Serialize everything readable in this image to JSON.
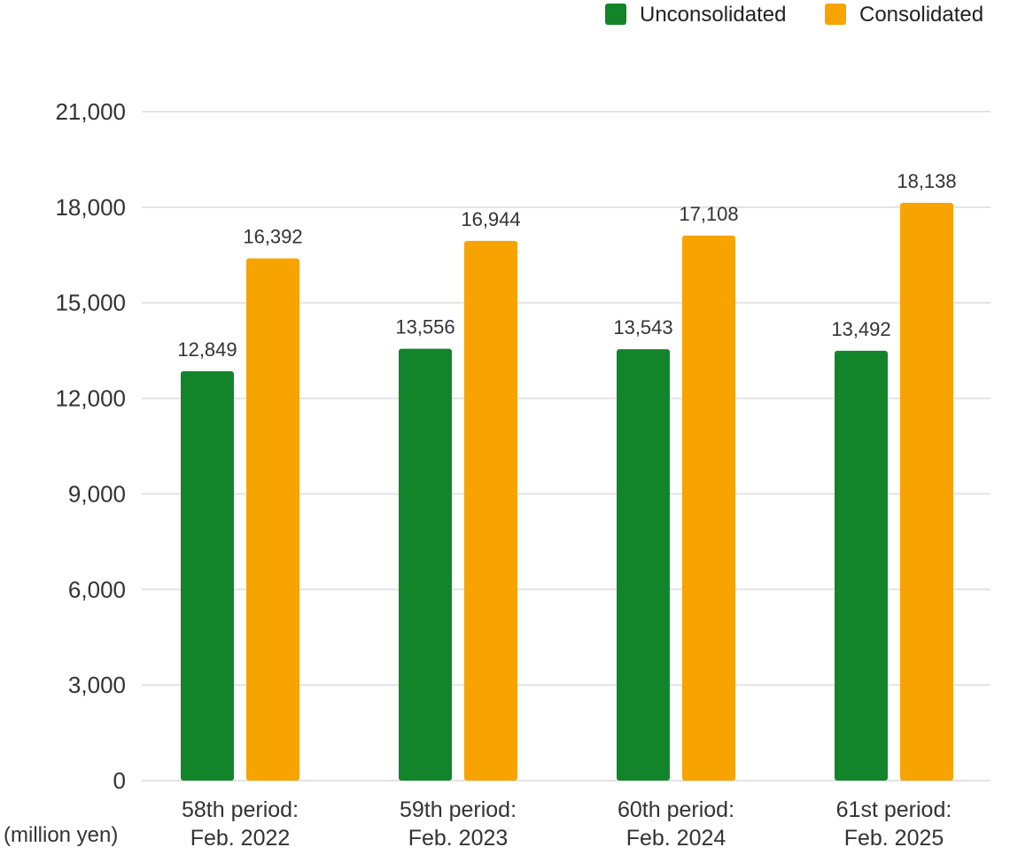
{
  "chart_data": {
    "type": "bar",
    "title": "",
    "unit_label": "(million yen)",
    "categories": [
      [
        "58th period:",
        "Feb. 2022"
      ],
      [
        "59th period:",
        "Feb. 2023"
      ],
      [
        "60th period:",
        "Feb. 2024"
      ],
      [
        "61st period:",
        "Feb. 2025"
      ]
    ],
    "series": [
      {
        "name": "Unconsolidated",
        "color": "#12852a",
        "values": [
          12849,
          13556,
          13543,
          13492
        ],
        "labels": [
          "12,849",
          "13,556",
          "13,543",
          "13,492"
        ]
      },
      {
        "name": "Consolidated",
        "color": "#f7a400",
        "values": [
          16392,
          16944,
          17108,
          18138
        ],
        "labels": [
          "16,392",
          "16,944",
          "17,108",
          "18,138"
        ]
      }
    ],
    "ylim": [
      0,
      21000
    ],
    "yticks": [
      0,
      3000,
      6000,
      9000,
      12000,
      15000,
      18000,
      21000
    ],
    "ytick_labels": [
      "0",
      "3,000",
      "6,000",
      "9,000",
      "12,000",
      "15,000",
      "18,000",
      "21,000"
    ],
    "grid": true,
    "legend_position": "top-right"
  }
}
